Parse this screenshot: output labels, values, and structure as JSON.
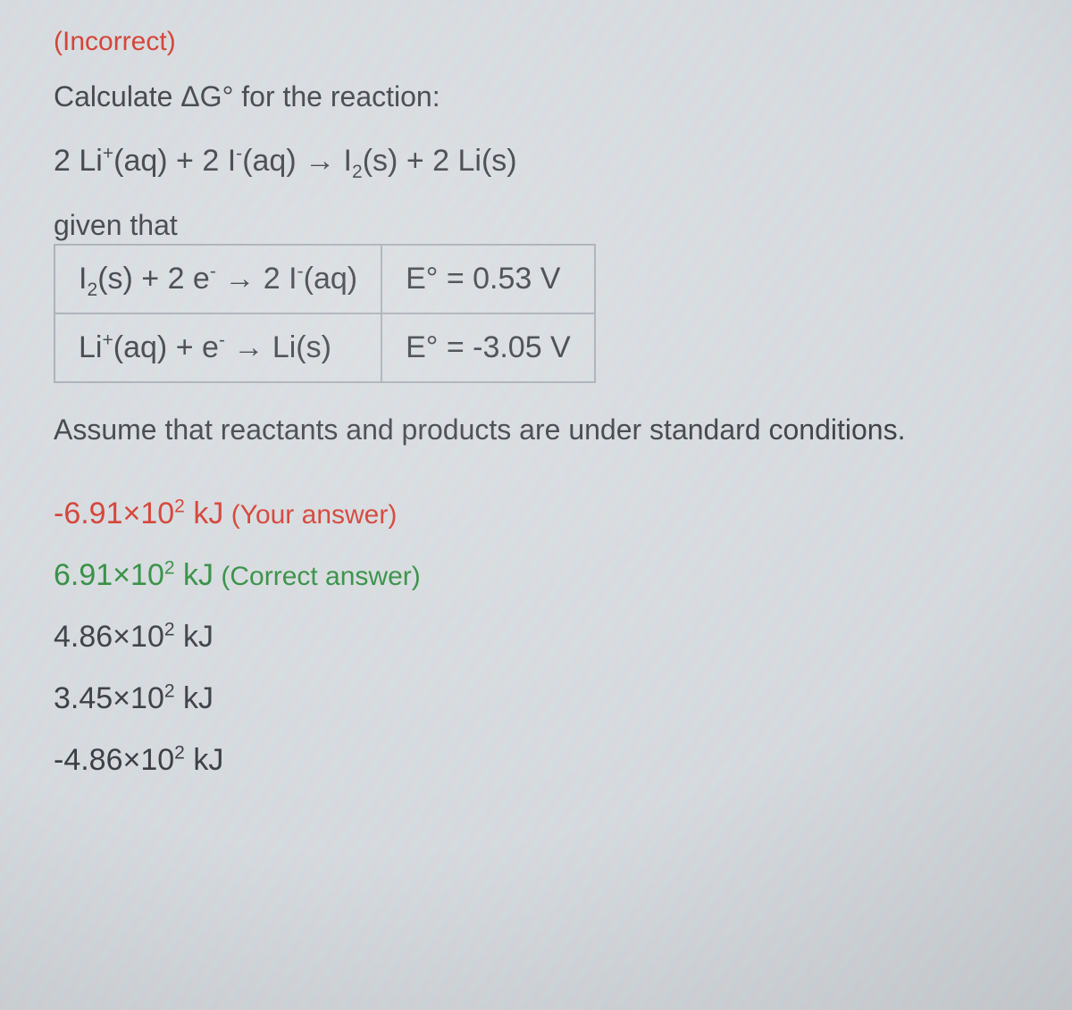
{
  "colors": {
    "text": "#3a3e44",
    "wrong": "#d23a2e",
    "correct": "#2e8c3e",
    "border": "#a7adb5",
    "background": "#d8dce0"
  },
  "status_label": "(Incorrect)",
  "prompt_text": "Calculate ΔG° for the reaction:",
  "main_equation_html": "2 Li<sup>+</sup>(aq) + 2 I<sup>-</sup>(aq) → I<sub>2</sub>(s) + 2 Li(s)",
  "given_label": "given that",
  "half_reactions": [
    {
      "reaction_html": "I<sub>2</sub>(s) + 2 e<sup>-</sup> → 2 I<sup>-</sup>(aq)",
      "potential": "E° = 0.53 V"
    },
    {
      "reaction_html": "Li<sup>+</sup>(aq) + e<sup>-</sup> → Li(s)",
      "potential": "E° = -3.05 V"
    }
  ],
  "assume_text": "Assume that reactants and products are under standard conditions.",
  "answers": [
    {
      "value_html": "-6.91×10<sup>2</sup> kJ",
      "note": "(Your answer)",
      "role": "wrong"
    },
    {
      "value_html": "6.91×10<sup>2</sup> kJ",
      "note": "(Correct answer)",
      "role": "correct"
    },
    {
      "value_html": "4.86×10<sup>2</sup> kJ",
      "note": "",
      "role": "plain"
    },
    {
      "value_html": "3.45×10<sup>2</sup> kJ",
      "note": "",
      "role": "plain"
    },
    {
      "value_html": "-4.86×10<sup>2</sup> kJ",
      "note": "",
      "role": "plain"
    }
  ]
}
